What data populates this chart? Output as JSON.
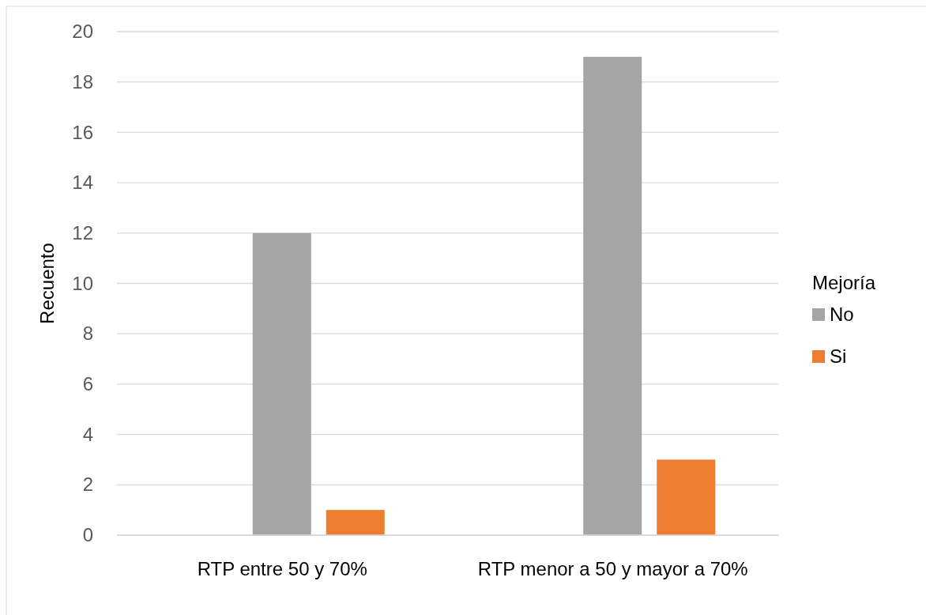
{
  "chart_data": {
    "type": "bar",
    "ylabel": "Recuento",
    "legend_title": "Mejoría",
    "legend": "right",
    "grid": "y",
    "categories": [
      "RTP entre 50 y 70%",
      "RTP menor a 50 y mayor a 70%"
    ],
    "series": [
      {
        "name": "No",
        "color": "#a5a5a5",
        "values": [
          12,
          19
        ]
      },
      {
        "name": "Si",
        "color": "#ed7d31",
        "values": [
          1,
          3
        ]
      }
    ],
    "ylim": [
      0,
      20
    ],
    "yticks": [
      0,
      2,
      4,
      6,
      8,
      10,
      12,
      14,
      16,
      18,
      20
    ]
  }
}
